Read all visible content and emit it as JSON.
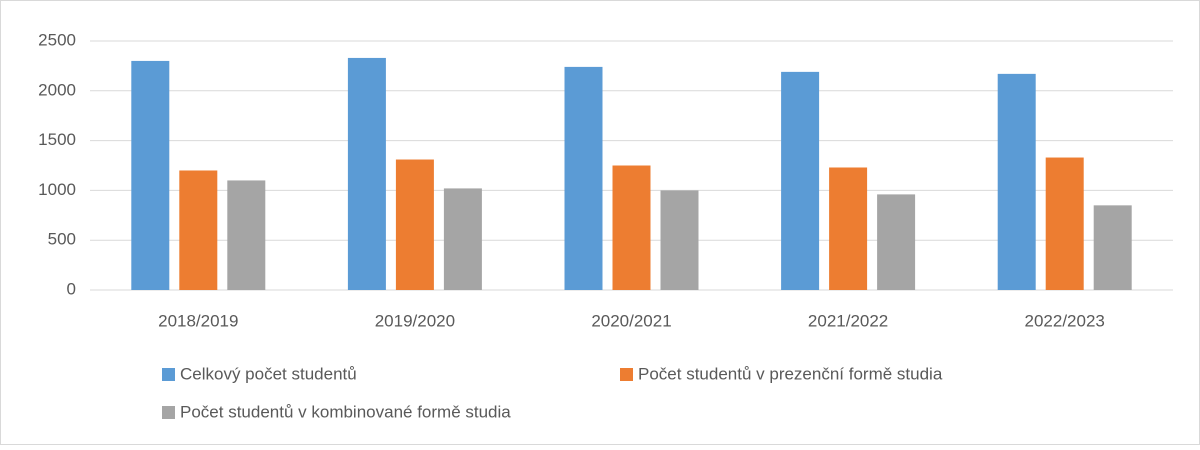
{
  "chart_data": {
    "type": "bar",
    "categories": [
      "2018/2019",
      "2019/2020",
      "2020/2021",
      "2021/2022",
      "2022/2023"
    ],
    "series": [
      {
        "name": "Celkový počet studentů",
        "color": "#5b9bd5",
        "values": [
          2300,
          2330,
          2240,
          2190,
          2170
        ]
      },
      {
        "name": "Počet studentů v prezenční formě studia",
        "color": "#ed7d31",
        "values": [
          1200,
          1310,
          1250,
          1230,
          1330
        ]
      },
      {
        "name": "Počet studentů v kombinované formě studia",
        "color": "#a5a5a5",
        "values": [
          1100,
          1020,
          1000,
          960,
          850
        ]
      }
    ],
    "ylim": [
      0,
      2500
    ],
    "yticks": [
      0,
      500,
      1000,
      1500,
      2000,
      2500
    ],
    "grid": true,
    "legend": "bottom"
  }
}
